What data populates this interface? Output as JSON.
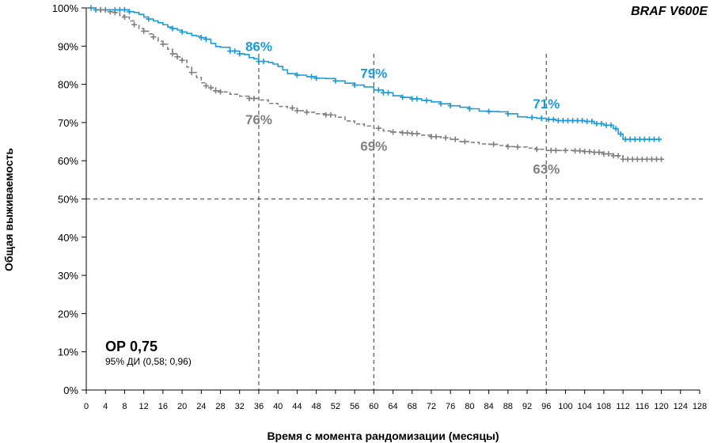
{
  "chart_data": {
    "type": "line",
    "title": "BRAF V600E",
    "xlabel": "Время с момента рандомизации (месяцы)",
    "ylabel": "Общая выживаемость",
    "xlim": [
      0,
      128
    ],
    "ylim": [
      0,
      100
    ],
    "x_ticks": [
      "0",
      "4",
      "8",
      "12",
      "16",
      "20",
      "24",
      "28",
      "32",
      "36",
      "40",
      "44",
      "48",
      "52",
      "56",
      "60",
      "64",
      "68",
      "72",
      "76",
      "80",
      "84",
      "88",
      "92",
      "96",
      "100",
      "104",
      "108",
      "112",
      "116",
      "120",
      "124",
      "128"
    ],
    "y_ticks": [
      "0%",
      "10%",
      "20%",
      "30%",
      "40%",
      "50%",
      "60%",
      "70%",
      "80%",
      "90%",
      "100%"
    ],
    "grid": false,
    "reference_lines": {
      "horizontal_y": 50,
      "vertical_x": [
        36,
        60,
        96
      ]
    },
    "hazard_ratio": {
      "main": "ОР 0,75",
      "ci": "95% ДИ (0,58; 0,96)"
    },
    "colors": {
      "blue": "#1a9bd7",
      "gray": "#808080",
      "ref": "#555555",
      "axis": "#000000"
    },
    "series": [
      {
        "color": "#1a9bd7",
        "style": "solid",
        "x": [
          0,
          2,
          4,
          6,
          8,
          9,
          10,
          11,
          12,
          13,
          14,
          15,
          16,
          17,
          18,
          19,
          20,
          21,
          22,
          23,
          24,
          25,
          26,
          27,
          28,
          30,
          32,
          33,
          34,
          35,
          36,
          38,
          39,
          40,
          41,
          42,
          44,
          46,
          48,
          50,
          52,
          54,
          56,
          58,
          60,
          62,
          64,
          66,
          68,
          70,
          72,
          74,
          76,
          78,
          80,
          82,
          84,
          86,
          88,
          90,
          92,
          94,
          96,
          98,
          100,
          102,
          104,
          106,
          108,
          110,
          111,
          112,
          114,
          116,
          118,
          119.5
        ],
        "y": [
          100,
          99.5,
          99.5,
          99.5,
          99.5,
          99.0,
          98.8,
          98.3,
          97.6,
          97.1,
          96.6,
          96.1,
          95.6,
          95.0,
          94.6,
          94.2,
          93.7,
          93.3,
          92.8,
          92.6,
          92.2,
          91.8,
          90.7,
          89.9,
          89.7,
          88.7,
          88.0,
          87.8,
          87.0,
          86.7,
          86.0,
          85.7,
          85.3,
          84.7,
          83.8,
          82.8,
          82.4,
          82.0,
          81.6,
          81.5,
          80.9,
          80.3,
          79.8,
          79.3,
          78.5,
          77.8,
          77.0,
          76.6,
          76.2,
          75.8,
          75.4,
          74.9,
          74.4,
          74.0,
          73.6,
          73.0,
          72.9,
          72.8,
          72.3,
          71.5,
          71.3,
          71.1,
          70.8,
          70.5,
          70.5,
          70.5,
          70.3,
          69.7,
          69.3,
          68.4,
          67.0,
          65.6,
          65.6,
          65.6,
          65.6,
          65.6
        ],
        "censor_x": [
          1,
          2,
          3,
          4,
          6,
          7,
          8,
          9,
          13,
          18,
          20,
          24,
          25,
          30,
          31,
          32,
          36,
          37,
          44,
          47,
          48,
          52,
          56,
          61,
          62,
          63,
          66,
          68,
          69,
          71,
          74,
          76,
          80,
          84,
          88,
          93,
          95,
          96.5,
          97.5,
          98.5,
          99.5,
          100.5,
          101.5,
          102.5,
          103.5,
          104.5,
          105.5,
          106.5,
          107.5,
          108.5,
          109.5,
          110.5,
          111.5,
          112.5,
          113.5,
          114.5,
          115.5,
          116.5,
          117.5,
          118.5,
          119.5
        ]
      },
      {
        "color": "#808080",
        "style": "dashed",
        "x": [
          0,
          2,
          4,
          6,
          7,
          8,
          9,
          10,
          11,
          12,
          13,
          14,
          15,
          16,
          17,
          18,
          19,
          20,
          21,
          22,
          23,
          24,
          25,
          26,
          27,
          28,
          30,
          32,
          34,
          36,
          38,
          40,
          42,
          44,
          46,
          48,
          50,
          52,
          54,
          56,
          58,
          60,
          62,
          64,
          66,
          68,
          70,
          72,
          74,
          76,
          78,
          80,
          82,
          84,
          86,
          88,
          90,
          92,
          94,
          96,
          98,
          100,
          102,
          104,
          106,
          108,
          110,
          112,
          114,
          116,
          118,
          120
        ],
        "y": [
          100,
          99.5,
          99.0,
          98.8,
          98.0,
          97.6,
          96.6,
          95.6,
          94.6,
          93.9,
          93.2,
          92.4,
          91.3,
          90.5,
          89.2,
          88.0,
          87.2,
          86.3,
          84.5,
          83.1,
          81.8,
          80.4,
          79.6,
          79.1,
          78.3,
          78.0,
          77.4,
          76.9,
          76.3,
          75.9,
          75.0,
          74.2,
          73.8,
          73.1,
          72.7,
          72.3,
          72.0,
          71.4,
          70.4,
          69.6,
          69.1,
          68.5,
          67.8,
          67.5,
          67.3,
          67.1,
          66.7,
          66.3,
          66.0,
          65.6,
          65.0,
          64.8,
          64.4,
          64.3,
          64.0,
          63.7,
          63.6,
          63.3,
          63.0,
          62.7,
          62.7,
          62.7,
          62.6,
          62.4,
          62.2,
          61.8,
          61.3,
          60.4,
          60.4,
          60.4,
          60.4,
          60.4
        ],
        "censor_x": [
          3,
          5,
          6,
          8,
          10,
          12,
          14,
          16,
          18,
          19,
          20,
          22,
          25,
          26,
          27,
          28,
          34,
          35,
          43,
          44,
          46,
          50,
          51,
          61,
          64,
          66,
          67,
          68,
          69,
          72,
          73,
          75,
          77,
          79,
          85,
          88,
          90,
          94,
          97,
          98,
          100,
          102,
          103,
          104,
          105,
          106,
          107,
          108,
          109,
          110,
          111,
          112,
          113,
          114,
          115,
          116,
          117,
          118,
          119,
          120
        ]
      }
    ],
    "annotations": [
      {
        "text": "86%",
        "x": 36,
        "y": 86,
        "color": "#1a9bd7",
        "pos": "above"
      },
      {
        "text": "79%",
        "x": 60,
        "y": 79,
        "color": "#1a9bd7",
        "pos": "above"
      },
      {
        "text": "71%",
        "x": 96,
        "y": 71,
        "color": "#1a9bd7",
        "pos": "above"
      },
      {
        "text": "76%",
        "x": 36,
        "y": 76,
        "color": "#808080",
        "pos": "below"
      },
      {
        "text": "69%",
        "x": 60,
        "y": 69,
        "color": "#808080",
        "pos": "below"
      },
      {
        "text": "63%",
        "x": 96,
        "y": 63,
        "color": "#808080",
        "pos": "below"
      }
    ]
  }
}
